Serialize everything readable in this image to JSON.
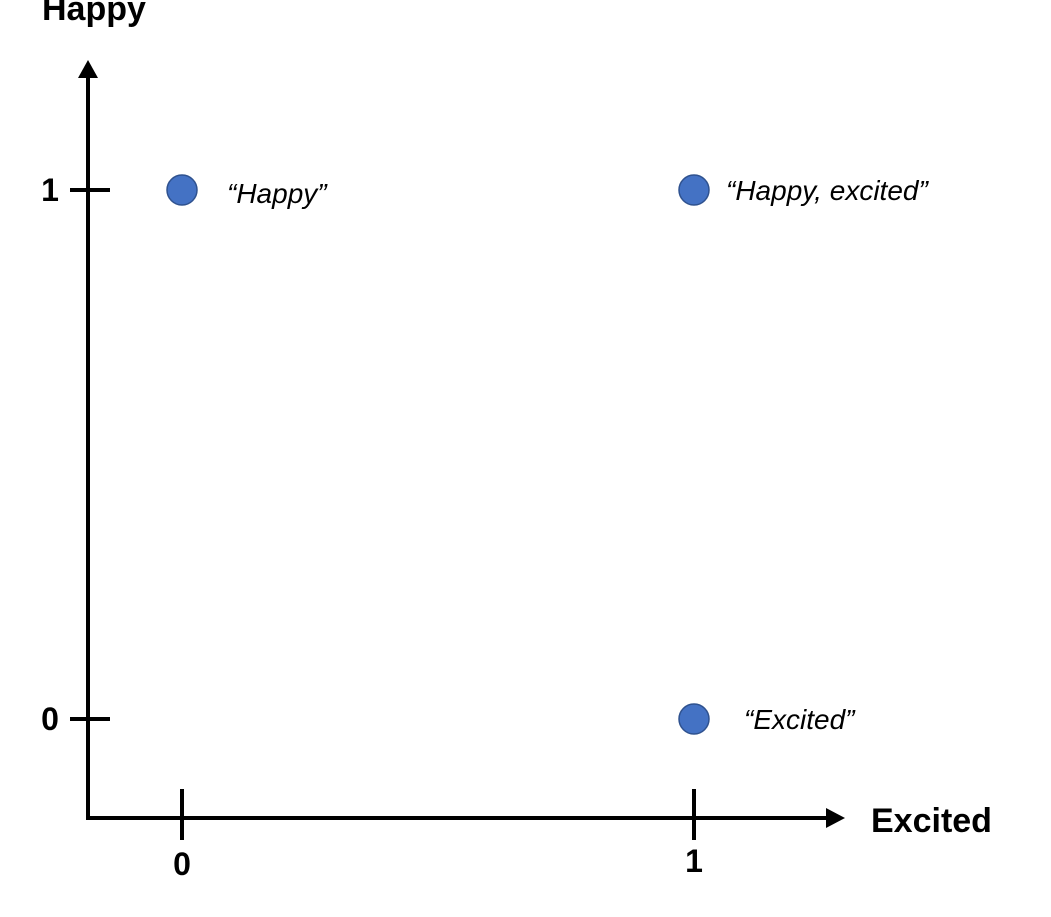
{
  "chart_data": {
    "type": "scatter",
    "title": "",
    "xlabel": "Excited",
    "ylabel": "Happy",
    "x_ticks": [
      "0",
      "1"
    ],
    "y_ticks": [
      "0",
      "1"
    ],
    "xlim": [
      0,
      1
    ],
    "ylim": [
      0,
      1
    ],
    "grid": false,
    "legend": "none",
    "point_color": "#4472c4",
    "point_edge_color": "#2f528f",
    "points": [
      {
        "x": 0,
        "y": 1,
        "label": "“Happy”"
      },
      {
        "x": 1,
        "y": 1,
        "label": "“Happy, excited”"
      },
      {
        "x": 1,
        "y": 0,
        "label": "“Excited”"
      }
    ]
  }
}
